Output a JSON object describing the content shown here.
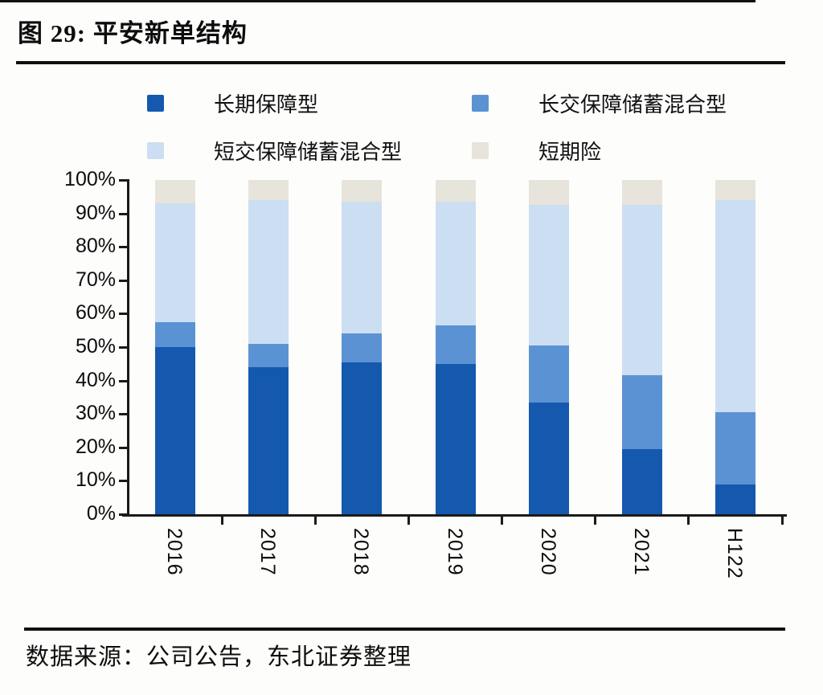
{
  "header": {
    "title": "图 29: 平安新单结构"
  },
  "legend": {
    "items": [
      {
        "label": "长期保障型",
        "color": "#1459AE"
      },
      {
        "label": "长交保障储蓄混合型",
        "color": "#5B92D3"
      },
      {
        "label": "短交保障储蓄混合型",
        "color": "#CCDEF2"
      },
      {
        "label": "短期险",
        "color": "#E7E4DB"
      }
    ]
  },
  "chart_data": {
    "type": "bar",
    "subtype": "stacked-percent",
    "title": "平安新单结构",
    "categories": [
      "2016",
      "2017",
      "2018",
      "2019",
      "2020",
      "2021",
      "H122"
    ],
    "series": [
      {
        "name": "长期保障型",
        "color": "#1459AE",
        "values": [
          50,
          44,
          45.5,
          45,
          33.5,
          19.5,
          9
        ]
      },
      {
        "name": "长交保障储蓄混合型",
        "color": "#5B92D3",
        "values": [
          7.5,
          7,
          8.5,
          11.5,
          17,
          22,
          21.5
        ]
      },
      {
        "name": "短交保障储蓄混合型",
        "color": "#CCDEF2",
        "values": [
          35.5,
          43,
          39.5,
          37,
          42,
          51,
          63.5
        ]
      },
      {
        "name": "短期险",
        "color": "#E7E4DB",
        "values": [
          7,
          6,
          6.5,
          6.5,
          7.5,
          7.5,
          6
        ]
      }
    ],
    "y_axis": {
      "min": 0,
      "max": 100,
      "ticks": [
        100,
        90,
        80,
        70,
        60,
        50,
        40,
        30,
        20,
        10,
        0
      ],
      "suffix": "%"
    },
    "xlabel": "",
    "ylabel": "",
    "grid": false,
    "legend_position": "top",
    "x_label_rotation": 90
  },
  "footer": {
    "source": "数据来源：公司公告，东北证券整理"
  }
}
